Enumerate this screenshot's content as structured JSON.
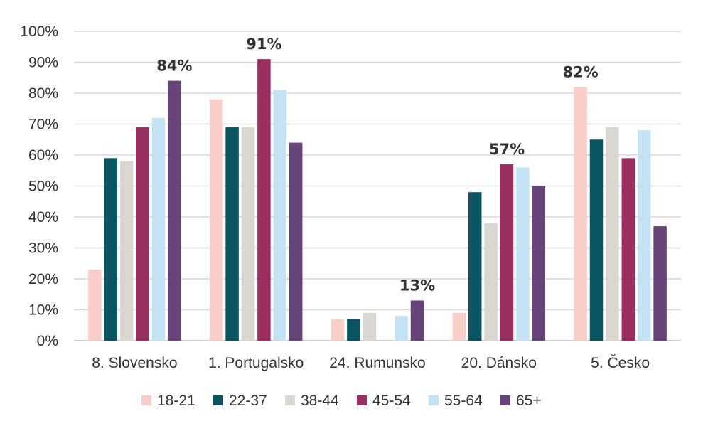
{
  "chart_data": {
    "type": "bar",
    "categories": [
      "8. Slovensko",
      "1. Portugalsko",
      "24. Rumunsko",
      "20. Dánsko",
      "5. Česko"
    ],
    "series": [
      {
        "name": "18-21",
        "color": "#f9cdc8",
        "values": [
          23,
          78,
          7,
          9,
          82
        ]
      },
      {
        "name": "22-37",
        "color": "#0b5563",
        "values": [
          59,
          69,
          7,
          48,
          65
        ]
      },
      {
        "name": "38-44",
        "color": "#dad7d2",
        "values": [
          58,
          69,
          9,
          38,
          69
        ]
      },
      {
        "name": "45-54",
        "color": "#9b2f61",
        "values": [
          69,
          91,
          null,
          57,
          59
        ]
      },
      {
        "name": "55-64",
        "color": "#c3e3f4",
        "values": [
          72,
          81,
          8,
          56,
          68
        ]
      },
      {
        "name": "65+",
        "color": "#67457a",
        "values": [
          84,
          64,
          13,
          50,
          37
        ]
      }
    ],
    "data_labels": [
      {
        "category": "8. Slovensko",
        "series": "65+",
        "text": "84%"
      },
      {
        "category": "1. Portugalsko",
        "series": "45-54",
        "text": "91%"
      },
      {
        "category": "24. Rumunsko",
        "series": "65+",
        "text": "13%"
      },
      {
        "category": "20. Dánsko",
        "series": "45-54",
        "text": "57%"
      },
      {
        "category": "5. Česko",
        "series": "18-21",
        "text": "82%"
      }
    ],
    "ylim": [
      0,
      100
    ],
    "yticks": [
      "0%",
      "10%",
      "20%",
      "30%",
      "40%",
      "50%",
      "60%",
      "70%",
      "80%",
      "90%",
      "100%"
    ],
    "grid": true,
    "legend": "bottom"
  }
}
